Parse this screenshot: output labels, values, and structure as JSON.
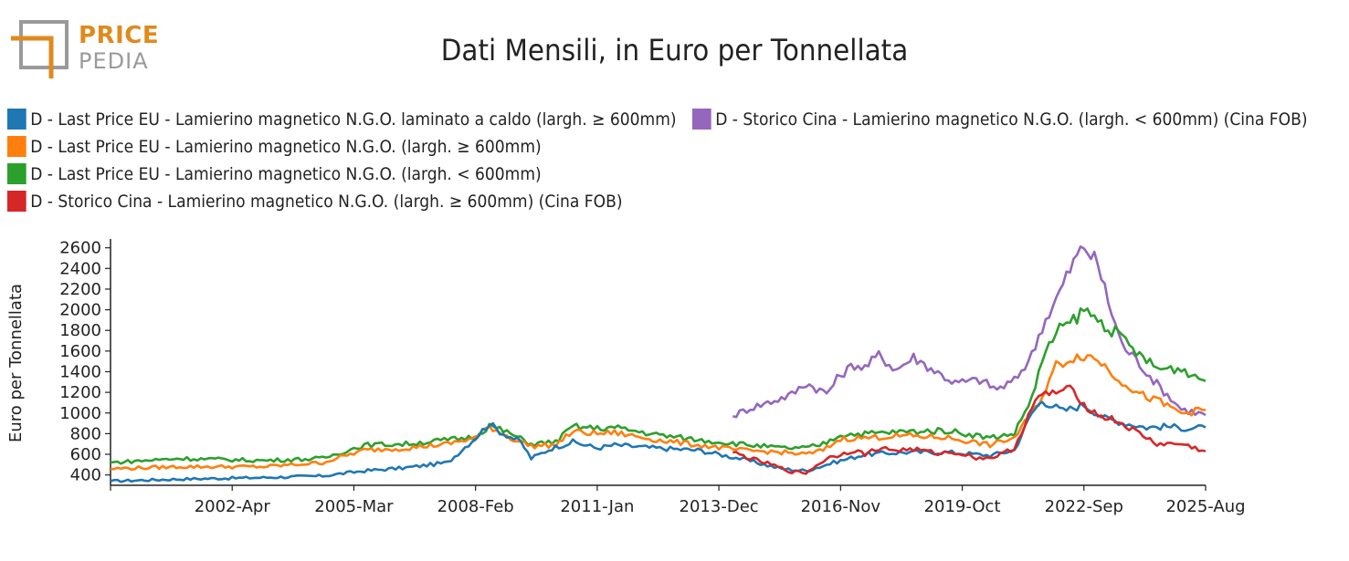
{
  "logo": {
    "word1": "PRICE",
    "word2": "PEDIA",
    "accent": "#e08a1e",
    "gray": "#9a9a9a"
  },
  "chart_data": {
    "type": "line",
    "title": "Dati Mensili, in Euro per Tonnellata",
    "xlabel": "",
    "ylabel": "Euro per Tonnellata",
    "xlim": [
      "1999-05",
      "2025-08"
    ],
    "ylim": [
      300,
      2650
    ],
    "y_ticks": [
      400,
      600,
      800,
      1000,
      1200,
      1400,
      1600,
      1800,
      2000,
      2200,
      2400,
      2600
    ],
    "x_ticks": [
      "2002-Apr",
      "2005-Mar",
      "2008-Feb",
      "2011-Jan",
      "2013-Dec",
      "2016-Nov",
      "2019-Oct",
      "2022-Sep",
      "2025-Aug"
    ],
    "x_tick_dates": [
      "2002-04",
      "2005-03",
      "2008-02",
      "2011-01",
      "2013-12",
      "2016-11",
      "2019-10",
      "2022-09",
      "2025-08"
    ],
    "grid": false,
    "legend_position": "top",
    "series": [
      {
        "name": "D - Last Price EU - Lamierino magnetico N.G.O. laminato a caldo (largh. ≥ 600mm)",
        "color": "#1f77b4",
        "points": [
          [
            "1999-05",
            340
          ],
          [
            "2001-01",
            360
          ],
          [
            "2003-01",
            375
          ],
          [
            "2004-06",
            390
          ],
          [
            "2005-06",
            440
          ],
          [
            "2006-06",
            470
          ],
          [
            "2007-06",
            520
          ],
          [
            "2008-02",
            760
          ],
          [
            "2008-06",
            900
          ],
          [
            "2008-09",
            820
          ],
          [
            "2009-03",
            720
          ],
          [
            "2009-06",
            560
          ],
          [
            "2009-12",
            660
          ],
          [
            "2010-06",
            720
          ],
          [
            "2011-01",
            660
          ],
          [
            "2011-06",
            690
          ],
          [
            "2012-06",
            660
          ],
          [
            "2013-06",
            640
          ],
          [
            "2014-06",
            560
          ],
          [
            "2015-06",
            460
          ],
          [
            "2016-01",
            440
          ],
          [
            "2016-09",
            520
          ],
          [
            "2017-06",
            600
          ],
          [
            "2018-06",
            620
          ],
          [
            "2019-06",
            620
          ],
          [
            "2020-06",
            590
          ],
          [
            "2021-01",
            640
          ],
          [
            "2021-06",
            1000
          ],
          [
            "2021-09",
            1120
          ],
          [
            "2022-03",
            1020
          ],
          [
            "2022-09",
            1080
          ],
          [
            "2023-03",
            950
          ],
          [
            "2023-09",
            900
          ],
          [
            "2024-03",
            860
          ],
          [
            "2024-09",
            870
          ],
          [
            "2025-03",
            850
          ],
          [
            "2025-08",
            860
          ]
        ]
      },
      {
        "name": "D - Storico Cina - Lamierino magnetico N.G.O. (largh. < 600mm) (Cina FOB)",
        "color": "#9467bd",
        "points": [
          [
            "2014-04",
            970
          ],
          [
            "2014-09",
            1050
          ],
          [
            "2015-03",
            1110
          ],
          [
            "2015-09",
            1180
          ],
          [
            "2016-01",
            1290
          ],
          [
            "2016-07",
            1190
          ],
          [
            "2016-11",
            1370
          ],
          [
            "2017-03",
            1470
          ],
          [
            "2017-06",
            1440
          ],
          [
            "2017-10",
            1560
          ],
          [
            "2018-03",
            1420
          ],
          [
            "2018-08",
            1540
          ],
          [
            "2019-03",
            1390
          ],
          [
            "2019-08",
            1290
          ],
          [
            "2020-03",
            1320
          ],
          [
            "2020-08",
            1230
          ],
          [
            "2021-01",
            1310
          ],
          [
            "2021-06",
            1560
          ],
          [
            "2021-09",
            1840
          ],
          [
            "2022-01",
            2100
          ],
          [
            "2022-06",
            2460
          ],
          [
            "2022-09",
            2620
          ],
          [
            "2023-01",
            2440
          ],
          [
            "2023-04",
            2080
          ],
          [
            "2023-08",
            1660
          ],
          [
            "2024-01",
            1480
          ],
          [
            "2024-06",
            1280
          ],
          [
            "2025-01",
            1040
          ],
          [
            "2025-08",
            980
          ]
        ]
      },
      {
        "name": "D - Last Price EU - Lamierino magnetico N.G.O. (largh. ≥ 600mm)",
        "color": "#ff7f0e",
        "points": [
          [
            "1999-05",
            460
          ],
          [
            "2001-01",
            480
          ],
          [
            "2003-01",
            480
          ],
          [
            "2004-06",
            520
          ],
          [
            "2005-06",
            640
          ],
          [
            "2006-06",
            660
          ],
          [
            "2007-06",
            700
          ],
          [
            "2008-02",
            760
          ],
          [
            "2008-06",
            870
          ],
          [
            "2008-12",
            760
          ],
          [
            "2009-06",
            680
          ],
          [
            "2010-01",
            690
          ],
          [
            "2010-06",
            820
          ],
          [
            "2011-01",
            800
          ],
          [
            "2011-06",
            810
          ],
          [
            "2012-06",
            740
          ],
          [
            "2013-06",
            690
          ],
          [
            "2014-06",
            640
          ],
          [
            "2015-06",
            620
          ],
          [
            "2016-01",
            600
          ],
          [
            "2016-06",
            640
          ],
          [
            "2016-11",
            750
          ],
          [
            "2017-06",
            760
          ],
          [
            "2018-06",
            780
          ],
          [
            "2019-06",
            760
          ],
          [
            "2020-06",
            690
          ],
          [
            "2021-01",
            760
          ],
          [
            "2021-06",
            1000
          ],
          [
            "2021-09",
            1160
          ],
          [
            "2022-01",
            1460
          ],
          [
            "2022-06",
            1540
          ],
          [
            "2022-09",
            1560
          ],
          [
            "2023-01",
            1520
          ],
          [
            "2023-06",
            1360
          ],
          [
            "2024-01",
            1180
          ],
          [
            "2024-06",
            1120
          ],
          [
            "2025-01",
            1000
          ],
          [
            "2025-08",
            1030
          ]
        ]
      },
      {
        "name": "D - Last Price EU - Lamierino magnetico N.G.O. (largh. < 600mm)",
        "color": "#2ca02c",
        "points": [
          [
            "1999-05",
            520
          ],
          [
            "2001-01",
            560
          ],
          [
            "2003-01",
            540
          ],
          [
            "2004-06",
            560
          ],
          [
            "2005-06",
            690
          ],
          [
            "2006-06",
            700
          ],
          [
            "2007-06",
            740
          ],
          [
            "2008-02",
            770
          ],
          [
            "2008-06",
            880
          ],
          [
            "2008-12",
            800
          ],
          [
            "2009-06",
            700
          ],
          [
            "2010-01",
            720
          ],
          [
            "2010-06",
            870
          ],
          [
            "2011-01",
            850
          ],
          [
            "2011-06",
            860
          ],
          [
            "2012-06",
            790
          ],
          [
            "2013-06",
            740
          ],
          [
            "2014-06",
            700
          ],
          [
            "2015-06",
            660
          ],
          [
            "2016-01",
            660
          ],
          [
            "2016-06",
            700
          ],
          [
            "2016-11",
            790
          ],
          [
            "2017-06",
            800
          ],
          [
            "2018-06",
            820
          ],
          [
            "2019-06",
            830
          ],
          [
            "2020-06",
            760
          ],
          [
            "2021-01",
            800
          ],
          [
            "2021-06",
            1150
          ],
          [
            "2021-09",
            1500
          ],
          [
            "2022-01",
            1780
          ],
          [
            "2022-06",
            1900
          ],
          [
            "2022-09",
            2000
          ],
          [
            "2023-01",
            1900
          ],
          [
            "2023-06",
            1780
          ],
          [
            "2024-01",
            1560
          ],
          [
            "2024-06",
            1430
          ],
          [
            "2025-01",
            1430
          ],
          [
            "2025-08",
            1310
          ]
        ]
      },
      {
        "name": "D - Storico Cina - Lamierino magnetico N.G.O. (largh. ≥ 600mm) (Cina FOB)",
        "color": "#d62728",
        "points": [
          [
            "2014-04",
            620
          ],
          [
            "2014-09",
            560
          ],
          [
            "2015-03",
            500
          ],
          [
            "2015-09",
            430
          ],
          [
            "2016-01",
            420
          ],
          [
            "2016-07",
            560
          ],
          [
            "2016-11",
            600
          ],
          [
            "2017-03",
            640
          ],
          [
            "2017-06",
            600
          ],
          [
            "2017-10",
            660
          ],
          [
            "2018-03",
            640
          ],
          [
            "2018-08",
            650
          ],
          [
            "2019-03",
            610
          ],
          [
            "2019-08",
            620
          ],
          [
            "2020-03",
            560
          ],
          [
            "2020-08",
            580
          ],
          [
            "2021-01",
            660
          ],
          [
            "2021-06",
            1050
          ],
          [
            "2021-09",
            1180
          ],
          [
            "2022-01",
            1200
          ],
          [
            "2022-06",
            1230
          ],
          [
            "2022-09",
            1080
          ],
          [
            "2023-01",
            980
          ],
          [
            "2023-06",
            930
          ],
          [
            "2024-01",
            800
          ],
          [
            "2024-06",
            700
          ],
          [
            "2025-01",
            700
          ],
          [
            "2025-08",
            630
          ]
        ]
      }
    ]
  }
}
